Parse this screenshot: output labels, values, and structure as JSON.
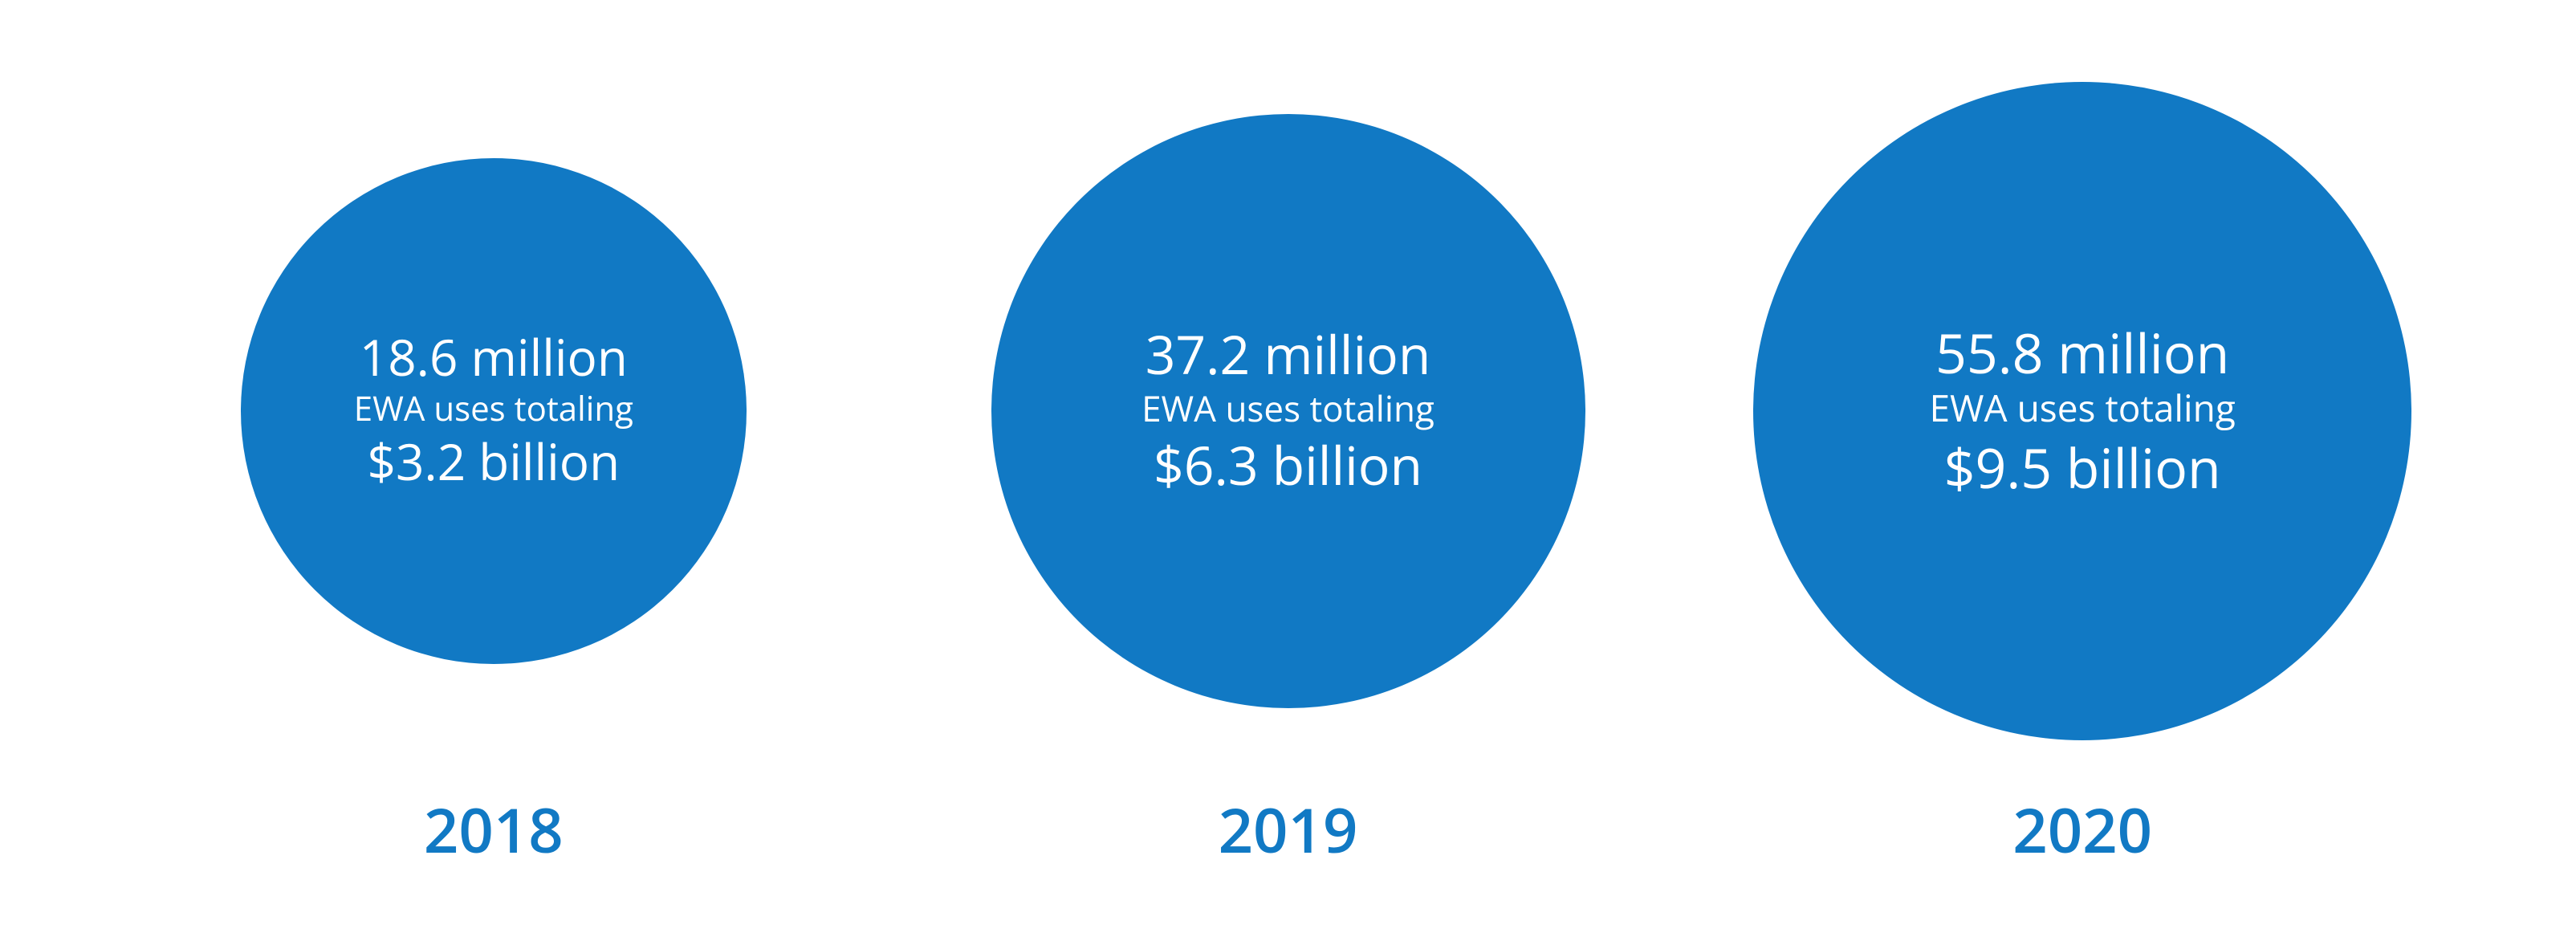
{
  "chart": {
    "type": "bubble-infographic",
    "background_color": "#ffffff",
    "circle_color": "#1179c4",
    "text_color": "#ffffff",
    "year_color": "#1179c4",
    "bubbles": [
      {
        "year": "2018",
        "primary": "18.6 million",
        "subtext": "EWA uses totaling",
        "secondary": "$3.2 billion",
        "diameter": 630,
        "primary_fontsize": 62,
        "subtext_fontsize": 42,
        "secondary_fontsize": 62,
        "year_fontsize": 76
      },
      {
        "year": "2019",
        "primary": "37.2 million",
        "subtext": "EWA uses totaling",
        "secondary": "$6.3 billion",
        "diameter": 740,
        "primary_fontsize": 66,
        "subtext_fontsize": 44,
        "secondary_fontsize": 66,
        "year_fontsize": 76
      },
      {
        "year": "2020",
        "primary": "55.8 million",
        "subtext": "EWA uses totaling",
        "secondary": "$9.5 billion",
        "diameter": 820,
        "primary_fontsize": 68,
        "subtext_fontsize": 46,
        "secondary_fontsize": 68,
        "year_fontsize": 76
      }
    ]
  }
}
